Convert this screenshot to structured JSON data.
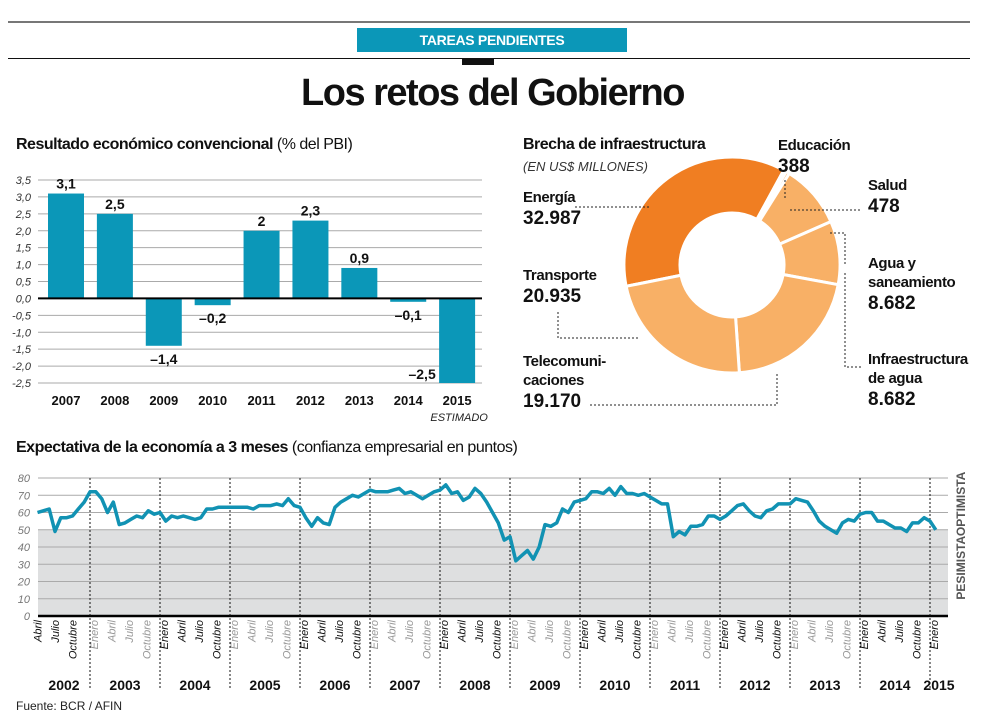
{
  "header": {
    "kicker": "TAREAS PENDIENTES",
    "title": "Los retos del Gobierno"
  },
  "colors": {
    "accent_blue": "#0b97b8",
    "line_blue": "#1192b3",
    "orange_dark": "#f07e22",
    "orange_light": "#f8b066",
    "pessimist_band": "#dedfe0",
    "grid": "#aaaaaa"
  },
  "source": "Fuente: BCR / AFIN",
  "chart_data": [
    {
      "id": "resultado",
      "type": "bar",
      "title": "Resultado económico convencional",
      "title_suffix": "(% del PBI)",
      "categories": [
        "2007",
        "2008",
        "2009",
        "2010",
        "2011",
        "2012",
        "2013",
        "2014",
        "2015"
      ],
      "values": [
        3.1,
        2.5,
        -1.4,
        -0.2,
        2.0,
        2.3,
        0.9,
        -0.1,
        -2.5
      ],
      "value_labels": [
        "3,1",
        "2,5",
        "–1,4",
        "–0,2",
        "2",
        "2,3",
        "0,9",
        "–0,1",
        "–2,5"
      ],
      "category_notes": {
        "2015": "ESTIMADO"
      },
      "ylim": [
        -2.5,
        3.5
      ],
      "yticks": [
        3.5,
        3.0,
        2.5,
        2.0,
        1.5,
        1.0,
        0.5,
        0.0,
        -0.5,
        -1.0,
        -1.5,
        -2.0,
        -2.5
      ],
      "ytick_labels": [
        "3,5",
        "3,0",
        "2,5",
        "2,0",
        "1,5",
        "1,0",
        "0,5",
        "0,0",
        "-0,5",
        "-1,0",
        "-1,5",
        "-2,0",
        "-2,5"
      ],
      "grid": true,
      "xlabel": "",
      "ylabel": ""
    },
    {
      "id": "brecha",
      "type": "pie",
      "donut": true,
      "title": "Brecha de infraestructura",
      "subtitle": "(EN US$ MILLONES)",
      "slices": [
        {
          "name": "Energía",
          "name_lines": [
            "Energía"
          ],
          "value": 32987,
          "label": "32.987",
          "shade": "dark"
        },
        {
          "name": "Educación",
          "name_lines": [
            "Educación"
          ],
          "value": 388,
          "label": "388",
          "shade": "light"
        },
        {
          "name": "Salud",
          "name_lines": [
            "Salud"
          ],
          "value": 478,
          "label": "478",
          "shade": "light"
        },
        {
          "name": "Agua y saneamiento",
          "name_lines": [
            "Agua y",
            "saneamiento"
          ],
          "value": 8682,
          "label": "8.682",
          "shade": "light"
        },
        {
          "name": "Infraestructura de agua",
          "name_lines": [
            "Infraestructura",
            "de agua"
          ],
          "value": 8682,
          "label": "8.682",
          "shade": "light"
        },
        {
          "name": "Telecomunicaciones",
          "name_lines": [
            "Telecomuni-",
            "caciones"
          ],
          "value": 19170,
          "label": "19.170",
          "shade": "light"
        },
        {
          "name": "Transporte",
          "name_lines": [
            "Transporte"
          ],
          "value": 20935,
          "label": "20.935",
          "shade": "light"
        }
      ]
    },
    {
      "id": "expectativa",
      "type": "line",
      "title": "Expectativa de la economía a 3 meses",
      "title_suffix": "(confianza empresarial en puntos)",
      "ylim": [
        0,
        80
      ],
      "yticks": [
        0,
        10,
        20,
        30,
        40,
        50,
        60,
        70,
        80
      ],
      "threshold": 50,
      "zone_labels": {
        "above": "OPTIMISTA",
        "below": "PESIMISTA"
      },
      "grid": true,
      "x_start": "2002-04",
      "x_end": "2015-02",
      "years": [
        "2002",
        "2003",
        "2004",
        "2005",
        "2006",
        "2007",
        "2008",
        "2009",
        "2010",
        "2011",
        "2012",
        "2013",
        "2014",
        "2015"
      ],
      "year_months": [
        [
          "Abril",
          "Julio",
          "Octubre"
        ],
        [
          "Enero",
          "Abril",
          "Julio",
          "Octubre"
        ],
        [
          "Enero",
          "Abril",
          "Julio",
          "Octubre"
        ],
        [
          "Enero",
          "Abril",
          "Julio",
          "Octubre"
        ],
        [
          "Enero",
          "Abril",
          "Julio",
          "Octubre"
        ],
        [
          "Enero",
          "Abril",
          "Julio",
          "Octubre"
        ],
        [
          "Enero",
          "Abril",
          "Julio",
          "Octubre"
        ],
        [
          "Enero",
          "Abril",
          "Julio",
          "Octubre"
        ],
        [
          "Enero",
          "Abril",
          "Julio",
          "Octubre"
        ],
        [
          "Enero",
          "Abril",
          "Julio",
          "Octubre"
        ],
        [
          "Enero",
          "Abril",
          "Julio",
          "Octubre"
        ],
        [
          "Enero",
          "Abril",
          "Julio",
          "Octubre"
        ],
        [
          "Enero",
          "Abril",
          "Julio",
          "Octubre"
        ],
        [
          "Enero"
        ]
      ],
      "year_emphasis": [
        true,
        false,
        true,
        false,
        true,
        false,
        true,
        false,
        true,
        false,
        true,
        false,
        true,
        true
      ],
      "series": [
        {
          "name": "Expectativa a 3 meses",
          "points": [
            [
              "2002-04",
              60
            ],
            [
              "2002-05",
              61
            ],
            [
              "2002-06",
              62
            ],
            [
              "2002-07",
              49
            ],
            [
              "2002-08",
              57
            ],
            [
              "2002-09",
              57
            ],
            [
              "2002-10",
              58
            ],
            [
              "2002-11",
              62
            ],
            [
              "2002-12",
              66
            ],
            [
              "2003-01",
              72
            ],
            [
              "2003-02",
              72
            ],
            [
              "2003-03",
              68
            ],
            [
              "2003-04",
              60
            ],
            [
              "2003-05",
              66
            ],
            [
              "2003-06",
              53
            ],
            [
              "2003-07",
              54
            ],
            [
              "2003-08",
              56
            ],
            [
              "2003-09",
              58
            ],
            [
              "2003-10",
              57
            ],
            [
              "2003-11",
              61
            ],
            [
              "2003-12",
              59
            ],
            [
              "2004-01",
              60
            ],
            [
              "2004-02",
              55
            ],
            [
              "2004-03",
              58
            ],
            [
              "2004-04",
              57
            ],
            [
              "2004-05",
              58
            ],
            [
              "2004-06",
              57
            ],
            [
              "2004-07",
              56
            ],
            [
              "2004-08",
              57
            ],
            [
              "2004-09",
              62
            ],
            [
              "2004-10",
              62
            ],
            [
              "2004-11",
              63
            ],
            [
              "2004-12",
              63
            ],
            [
              "2005-01",
              63
            ],
            [
              "2005-02",
              63
            ],
            [
              "2005-03",
              63
            ],
            [
              "2005-04",
              63
            ],
            [
              "2005-05",
              62
            ],
            [
              "2005-06",
              64
            ],
            [
              "2005-07",
              64
            ],
            [
              "2005-08",
              64
            ],
            [
              "2005-09",
              65
            ],
            [
              "2005-10",
              64
            ],
            [
              "2005-11",
              68
            ],
            [
              "2005-12",
              64
            ],
            [
              "2006-01",
              63
            ],
            [
              "2006-02",
              57
            ],
            [
              "2006-03",
              52
            ],
            [
              "2006-04",
              57
            ],
            [
              "2006-05",
              54
            ],
            [
              "2006-06",
              53
            ],
            [
              "2006-07",
              63
            ],
            [
              "2006-08",
              66
            ],
            [
              "2006-09",
              68
            ],
            [
              "2006-10",
              70
            ],
            [
              "2006-11",
              69
            ],
            [
              "2006-12",
              71
            ],
            [
              "2007-01",
              73
            ],
            [
              "2007-02",
              72
            ],
            [
              "2007-03",
              72
            ],
            [
              "2007-04",
              72
            ],
            [
              "2007-05",
              73
            ],
            [
              "2007-06",
              74
            ],
            [
              "2007-07",
              71
            ],
            [
              "2007-08",
              72
            ],
            [
              "2007-09",
              70
            ],
            [
              "2007-10",
              68
            ],
            [
              "2007-11",
              70
            ],
            [
              "2007-12",
              72
            ],
            [
              "2008-01",
              73
            ],
            [
              "2008-02",
              76
            ],
            [
              "2008-03",
              71
            ],
            [
              "2008-04",
              72
            ],
            [
              "2008-05",
              67
            ],
            [
              "2008-06",
              69
            ],
            [
              "2008-07",
              74
            ],
            [
              "2008-08",
              71
            ],
            [
              "2008-09",
              66
            ],
            [
              "2008-10",
              60
            ],
            [
              "2008-11",
              54
            ],
            [
              "2008-12",
              44
            ],
            [
              "2009-01",
              46
            ],
            [
              "2009-02",
              32
            ],
            [
              "2009-03",
              35
            ],
            [
              "2009-04",
              38
            ],
            [
              "2009-05",
              33
            ],
            [
              "2009-06",
              40
            ],
            [
              "2009-07",
              53
            ],
            [
              "2009-08",
              52
            ],
            [
              "2009-09",
              54
            ],
            [
              "2009-10",
              62
            ],
            [
              "2009-11",
              60
            ],
            [
              "2009-12",
              66
            ],
            [
              "2010-01",
              67
            ],
            [
              "2010-02",
              68
            ],
            [
              "2010-03",
              72
            ],
            [
              "2010-04",
              72
            ],
            [
              "2010-05",
              71
            ],
            [
              "2010-06",
              74
            ],
            [
              "2010-07",
              70
            ],
            [
              "2010-08",
              75
            ],
            [
              "2010-09",
              71
            ],
            [
              "2010-10",
              71
            ],
            [
              "2010-11",
              70
            ],
            [
              "2010-12",
              71
            ],
            [
              "2011-01",
              69
            ],
            [
              "2011-02",
              67
            ],
            [
              "2011-03",
              65
            ],
            [
              "2011-04",
              65
            ],
            [
              "2011-05",
              46
            ],
            [
              "2011-06",
              49
            ],
            [
              "2011-07",
              47
            ],
            [
              "2011-08",
              52
            ],
            [
              "2011-09",
              52
            ],
            [
              "2011-10",
              53
            ],
            [
              "2011-11",
              58
            ],
            [
              "2011-12",
              58
            ],
            [
              "2012-01",
              56
            ],
            [
              "2012-02",
              58
            ],
            [
              "2012-03",
              61
            ],
            [
              "2012-04",
              64
            ],
            [
              "2012-05",
              65
            ],
            [
              "2012-06",
              61
            ],
            [
              "2012-07",
              58
            ],
            [
              "2012-08",
              57
            ],
            [
              "2012-09",
              61
            ],
            [
              "2012-10",
              62
            ],
            [
              "2012-11",
              65
            ],
            [
              "2012-12",
              65
            ],
            [
              "2013-01",
              65
            ],
            [
              "2013-02",
              68
            ],
            [
              "2013-03",
              67
            ],
            [
              "2013-04",
              66
            ],
            [
              "2013-05",
              61
            ],
            [
              "2013-06",
              55
            ],
            [
              "2013-07",
              52
            ],
            [
              "2013-08",
              50
            ],
            [
              "2013-09",
              48
            ],
            [
              "2013-10",
              54
            ],
            [
              "2013-11",
              56
            ],
            [
              "2013-12",
              55
            ],
            [
              "2014-01",
              59
            ],
            [
              "2014-02",
              60
            ],
            [
              "2014-03",
              60
            ],
            [
              "2014-04",
              55
            ],
            [
              "2014-05",
              55
            ],
            [
              "2014-06",
              53
            ],
            [
              "2014-07",
              51
            ],
            [
              "2014-08",
              51
            ],
            [
              "2014-09",
              49
            ],
            [
              "2014-10",
              54
            ],
            [
              "2014-11",
              54
            ],
            [
              "2014-12",
              57
            ],
            [
              "2015-01",
              55
            ],
            [
              "2015-02",
              50
            ]
          ]
        }
      ]
    }
  ]
}
